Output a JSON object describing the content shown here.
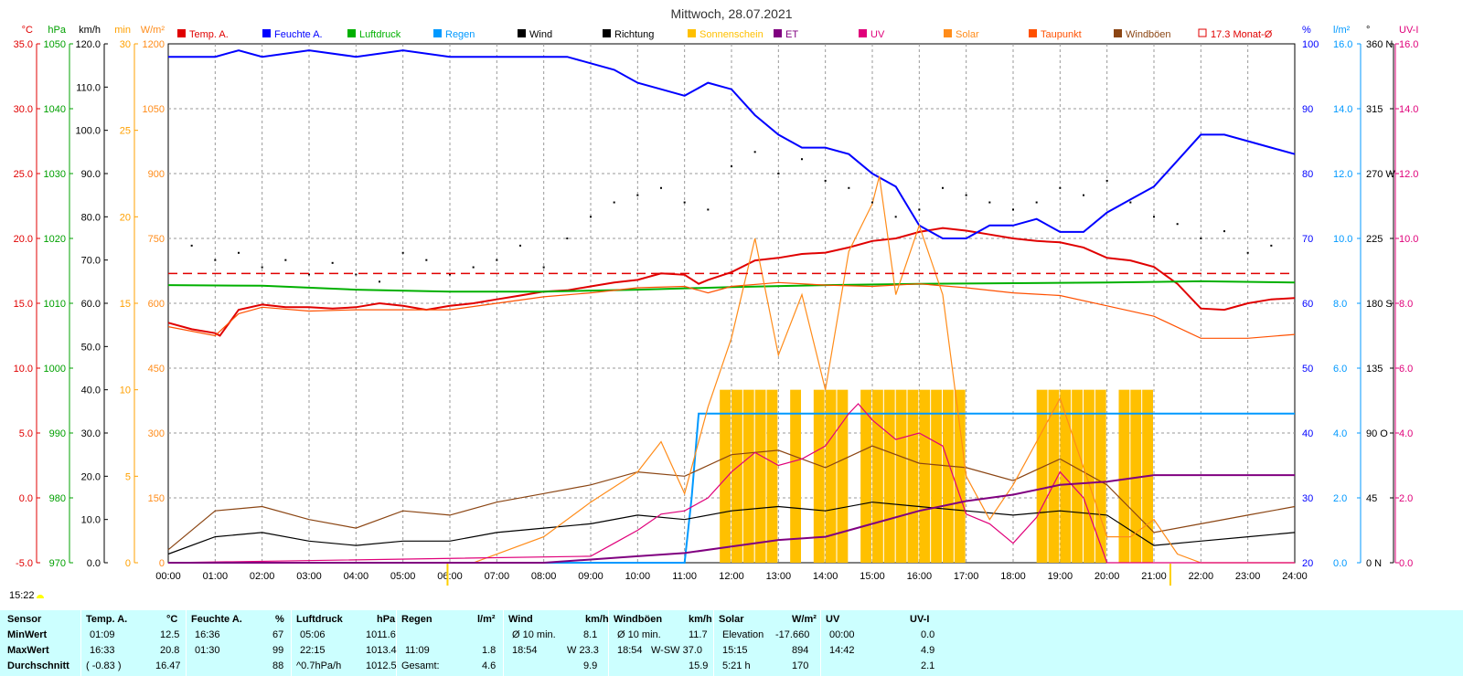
{
  "title": "Mittwoch, 28.07.2021",
  "clock": "15:22",
  "legend": [
    {
      "label": "Temp. A.",
      "color": "#e00000",
      "box": "fill"
    },
    {
      "label": "Feuchte A.",
      "color": "#0000ff",
      "box": "fill"
    },
    {
      "label": "Luftdruck",
      "color": "#00b000",
      "box": "fill"
    },
    {
      "label": "Regen",
      "color": "#0099ff",
      "box": "fill"
    },
    {
      "label": "Wind",
      "color": "#000000",
      "box": "fill"
    },
    {
      "label": "Richtung",
      "color": "#000000",
      "box": "fill"
    },
    {
      "label": "Sonnenschein",
      "color": "#ffc000",
      "box": "fill"
    },
    {
      "label": "ET",
      "color": "#800080",
      "box": "fill"
    },
    {
      "label": "UV",
      "color": "#e0007a",
      "box": "fill"
    },
    {
      "label": "Solar",
      "color": "#ff8c1a",
      "box": "fill"
    },
    {
      "label": "Taupunkt",
      "color": "#ff5000",
      "box": "fill"
    },
    {
      "label": "Windböen",
      "color": "#8b4513",
      "box": "fill"
    },
    {
      "label": "17.3 Monat-Ø",
      "color": "#e00000",
      "box": "outline"
    }
  ],
  "axes": {
    "temp": {
      "unit": "°C",
      "color": "#e00000",
      "ticks": [
        "35.0",
        "30.0",
        "25.0",
        "20.0",
        "15.0",
        "10.0",
        "5.0",
        "0.0",
        "-5.0"
      ]
    },
    "pressure": {
      "unit": "hPa",
      "color": "#00a000",
      "ticks": [
        "1050",
        "1040",
        "1030",
        "1020",
        "1010",
        "1000",
        "990",
        "980",
        "970"
      ]
    },
    "wind": {
      "unit": "km/h",
      "color": "#000000",
      "ticks": [
        "120.0",
        "110.0",
        "100.0",
        "90.0",
        "80.0",
        "70.0",
        "60.0",
        "50.0",
        "40.0",
        "30.0",
        "20.0",
        "10.0",
        "0.0"
      ]
    },
    "sunmin": {
      "unit": "min",
      "color": "#ffa000",
      "ticks": [
        "30",
        "25",
        "20",
        "15",
        "10",
        "5",
        "0"
      ]
    },
    "solar": {
      "unit": "W/m²",
      "color": "#ff8c1a",
      "ticks": [
        "1200",
        "1050",
        "900",
        "750",
        "600",
        "450",
        "300",
        "150",
        "0"
      ]
    },
    "humidity": {
      "unit": "%",
      "color": "#0000ff",
      "ticks": [
        "100",
        "90",
        "80",
        "70",
        "60",
        "50",
        "40",
        "30",
        "20"
      ]
    },
    "rain": {
      "unit": "l/m²",
      "color": "#0099ff",
      "ticks": [
        "16.0",
        "14.0",
        "12.0",
        "10.0",
        "8.0",
        "6.0",
        "4.0",
        "2.0",
        "0.0"
      ]
    },
    "direction": {
      "unit": "°",
      "color": "#000000",
      "ticks": [
        "360 N",
        "315",
        "270 W",
        "225",
        "180 S",
        "135",
        "90 O",
        "45",
        "0 N"
      ]
    },
    "uvi": {
      "unit": "UV-I",
      "color": "#e0007a",
      "ticks": [
        "16.0",
        "14.0",
        "12.0",
        "10.0",
        "8.0",
        "6.0",
        "4.0",
        "2.0",
        "0.0"
      ]
    }
  },
  "x_ticks": [
    "00:00",
    "01:00",
    "02:00",
    "03:00",
    "04:00",
    "05:00",
    "06:00",
    "07:00",
    "08:00",
    "09:00",
    "10:00",
    "11:00",
    "12:00",
    "13:00",
    "14:00",
    "15:00",
    "16:00",
    "17:00",
    "18:00",
    "19:00",
    "20:00",
    "21:00",
    "22:00",
    "23:00",
    "24:00"
  ],
  "chart_data": {
    "type": "line",
    "title": "Mittwoch, 28.07.2021",
    "x_unit": "hour of day",
    "xlim": [
      0,
      24
    ],
    "month_avg_temp": 17.3,
    "series": [
      {
        "name": "Temp. A.",
        "axis": "temp",
        "color": "#e00000",
        "x": [
          0,
          0.5,
          1.0,
          1.1,
          1.5,
          2.0,
          2.5,
          3.0,
          3.5,
          4.0,
          4.5,
          5.0,
          5.5,
          6.0,
          6.5,
          7.0,
          7.5,
          8.0,
          8.5,
          9.0,
          9.5,
          10.0,
          10.5,
          11.0,
          11.3,
          11.5,
          12.0,
          12.5,
          13.0,
          13.5,
          14.0,
          14.5,
          15.0,
          15.5,
          16.0,
          16.5,
          17.0,
          17.5,
          18.0,
          18.5,
          19.0,
          19.5,
          20.0,
          20.5,
          21.0,
          21.5,
          22.0,
          22.5,
          23.0,
          23.5,
          24.0
        ],
        "y": [
          13.5,
          13.0,
          12.7,
          12.5,
          14.5,
          14.9,
          14.7,
          14.7,
          14.6,
          14.7,
          15.0,
          14.8,
          14.5,
          14.8,
          15.0,
          15.3,
          15.6,
          15.9,
          16.0,
          16.3,
          16.6,
          16.8,
          17.3,
          17.2,
          16.5,
          16.8,
          17.4,
          18.3,
          18.5,
          18.8,
          18.9,
          19.3,
          19.8,
          20.0,
          20.5,
          20.8,
          20.6,
          20.3,
          20.0,
          19.8,
          19.7,
          19.3,
          18.5,
          18.3,
          17.8,
          16.5,
          14.6,
          14.5,
          15.0,
          15.3,
          15.4
        ]
      },
      {
        "name": "Feuchte A.",
        "axis": "humidity",
        "color": "#0000ff",
        "x": [
          0,
          1.0,
          1.5,
          2.0,
          3.0,
          4.0,
          5.0,
          6.0,
          7.0,
          8.0,
          8.5,
          9.0,
          9.5,
          10.0,
          10.5,
          11.0,
          11.5,
          12.0,
          12.5,
          13.0,
          13.5,
          14.0,
          14.5,
          15.0,
          15.5,
          16.0,
          16.5,
          17.0,
          17.5,
          18.0,
          18.5,
          19.0,
          19.5,
          20.0,
          20.5,
          21.0,
          21.5,
          22.0,
          22.5,
          23.0,
          23.5,
          24.0
        ],
        "y": [
          98,
          98,
          99,
          98,
          99,
          98,
          99,
          98,
          98,
          98,
          98,
          97,
          96,
          94,
          93,
          92,
          94,
          93,
          89,
          86,
          84,
          84,
          83,
          80,
          78,
          72,
          70,
          70,
          72,
          72,
          73,
          71,
          71,
          74,
          76,
          78,
          82,
          86,
          86,
          85,
          84,
          83
        ]
      },
      {
        "name": "Luftdruck",
        "axis": "pressure",
        "color": "#00b000",
        "x": [
          0,
          2,
          4,
          6,
          8,
          10,
          12,
          14,
          16,
          18,
          20,
          22,
          24
        ],
        "y": [
          1012.8,
          1012.7,
          1012.1,
          1011.8,
          1011.8,
          1012.1,
          1012.5,
          1012.8,
          1013.0,
          1013.1,
          1013.2,
          1013.4,
          1013.2
        ]
      },
      {
        "name": "Taupunkt",
        "axis": "temp",
        "color": "#ff5000",
        "x": [
          0,
          1.0,
          1.5,
          2.0,
          3.0,
          4.0,
          5.0,
          6.0,
          7.0,
          8.0,
          9.0,
          10.0,
          11.0,
          11.5,
          12.0,
          13.0,
          14.0,
          15.0,
          16.0,
          17.0,
          18.0,
          19.0,
          20.0,
          21.0,
          22.0,
          23.0,
          24.0
        ],
        "y": [
          13.2,
          12.5,
          14.2,
          14.7,
          14.4,
          14.5,
          14.5,
          14.5,
          15.0,
          15.5,
          15.8,
          16.2,
          16.3,
          15.8,
          16.3,
          16.6,
          16.4,
          16.3,
          16.5,
          16.2,
          15.8,
          15.6,
          14.8,
          14.0,
          12.3,
          12.3,
          12.6
        ]
      },
      {
        "name": "Regen",
        "axis": "rain",
        "color": "#0099ff",
        "x": [
          0,
          11.0,
          11.15,
          11.3,
          11.5,
          24.0
        ],
        "y": [
          0.0,
          0.0,
          2.0,
          4.6,
          4.6,
          4.6
        ]
      },
      {
        "name": "Wind",
        "axis": "wind",
        "color": "#000000",
        "x": [
          0,
          1,
          2,
          3,
          4,
          5,
          6,
          7,
          8,
          9,
          10,
          11,
          12,
          13,
          14,
          15,
          16,
          17,
          18,
          19,
          20,
          21,
          22,
          23,
          24
        ],
        "y": [
          2.0,
          6.0,
          7.0,
          5.0,
          4.0,
          5.0,
          5.0,
          7.0,
          8.0,
          9.0,
          11.0,
          10.0,
          12.0,
          13.0,
          12.0,
          14.0,
          13.0,
          12.0,
          11.0,
          12.0,
          11.0,
          4.0,
          5.0,
          6.0,
          7.0
        ]
      },
      {
        "name": "Windböen",
        "axis": "wind",
        "color": "#8b4513",
        "x": [
          0,
          1,
          2,
          3,
          4,
          5,
          6,
          7,
          8,
          9,
          10,
          11,
          12,
          13,
          14,
          15,
          16,
          17,
          18,
          19,
          20,
          21,
          22,
          23,
          24
        ],
        "y": [
          3.0,
          12.0,
          13.0,
          10.0,
          8.0,
          12.0,
          11.0,
          14.0,
          16.0,
          18.0,
          21.0,
          20.0,
          25.0,
          26.0,
          22.0,
          27.0,
          23.0,
          22.0,
          19.0,
          24.0,
          18.0,
          7.0,
          9.0,
          11.0,
          13.0
        ]
      },
      {
        "name": "Solar",
        "axis": "solar",
        "color": "#ff8c1a",
        "x": [
          0,
          6.5,
          7.0,
          8.0,
          9.0,
          10.0,
          10.5,
          11.0,
          11.5,
          12.0,
          12.5,
          13.0,
          13.5,
          14.0,
          14.5,
          15.0,
          15.15,
          15.5,
          16.0,
          16.5,
          17.0,
          17.5,
          18.0,
          18.5,
          19.0,
          19.5,
          20.0,
          20.5,
          21.0,
          21.5,
          22.0,
          24.0
        ],
        "y": [
          0,
          0,
          20,
          60,
          140,
          210,
          280,
          160,
          360,
          520,
          750,
          480,
          620,
          400,
          720,
          830,
          894,
          620,
          780,
          620,
          200,
          100,
          180,
          280,
          380,
          220,
          60,
          60,
          100,
          20,
          0,
          0
        ]
      },
      {
        "name": "UV",
        "axis": "uvi",
        "color": "#e0007a",
        "x": [
          0,
          9.0,
          9.5,
          10.0,
          10.5,
          11.0,
          11.5,
          12.0,
          12.5,
          13.0,
          13.5,
          14.0,
          14.5,
          14.7,
          15.0,
          15.5,
          16.0,
          16.5,
          17.0,
          17.5,
          18.0,
          18.5,
          19.0,
          19.5,
          20.0,
          24.0
        ],
        "y": [
          0.0,
          0.2,
          0.6,
          1.0,
          1.5,
          1.6,
          2.0,
          2.8,
          3.4,
          3.0,
          3.2,
          3.6,
          4.6,
          4.9,
          4.4,
          3.8,
          4.0,
          3.6,
          1.5,
          1.2,
          0.6,
          1.4,
          2.8,
          2.0,
          0.0,
          0.0
        ]
      },
      {
        "name": "ET",
        "axis": "uvi",
        "color": "#800080",
        "x": [
          0,
          8.0,
          9.0,
          10.0,
          11.0,
          12.0,
          13.0,
          14.0,
          15.0,
          16.0,
          17.0,
          18.0,
          19.0,
          20.0,
          21.0,
          22.0,
          23.0,
          24.0
        ],
        "y": [
          0.0,
          0.0,
          0.1,
          0.2,
          0.3,
          0.5,
          0.7,
          0.8,
          1.2,
          1.6,
          1.9,
          2.1,
          2.4,
          2.5,
          2.7,
          2.7,
          2.7,
          2.7
        ]
      },
      {
        "name": "Sonnenschein",
        "axis": "sunmin",
        "color": "#ffc000",
        "type": "bar",
        "x": [
          11.75,
          12.0,
          12.25,
          12.5,
          12.75,
          13.25,
          13.75,
          14.0,
          14.25,
          14.75,
          15.0,
          15.25,
          15.5,
          15.75,
          16.0,
          16.25,
          16.5,
          16.75,
          18.5,
          18.75,
          19.0,
          19.25,
          19.5,
          19.75,
          20.25,
          20.5,
          20.75
        ],
        "y": [
          10,
          10,
          10,
          10,
          10,
          10,
          10,
          10,
          10,
          10,
          10,
          10,
          10,
          10,
          10,
          10,
          10,
          10,
          10,
          10,
          10,
          10,
          10,
          10,
          10,
          10,
          10
        ]
      },
      {
        "name": "Richtung",
        "axis": "direction",
        "color": "#000000",
        "type": "scatter",
        "x": [
          0.5,
          1.0,
          1.5,
          2.0,
          2.5,
          3.0,
          3.5,
          4.0,
          4.5,
          5.0,
          5.5,
          6.0,
          6.5,
          7.0,
          7.5,
          8.0,
          8.5,
          9.0,
          9.5,
          10.0,
          10.5,
          11.0,
          11.5,
          12.0,
          12.5,
          13.0,
          13.5,
          14.0,
          14.5,
          15.0,
          15.5,
          16.0,
          16.5,
          17.0,
          17.5,
          18.0,
          18.5,
          19.0,
          19.5,
          20.0,
          20.5,
          21.0,
          21.5,
          22.0,
          22.5,
          23.0,
          23.5
        ],
        "y": [
          220,
          210,
          215,
          205,
          210,
          200,
          208,
          200,
          195,
          215,
          210,
          200,
          205,
          210,
          220,
          205,
          225,
          240,
          250,
          255,
          260,
          250,
          245,
          275,
          285,
          270,
          280,
          265,
          260,
          250,
          240,
          245,
          260,
          255,
          250,
          245,
          250,
          260,
          255,
          265,
          250,
          240,
          235,
          225,
          230,
          215,
          220
        ]
      }
    ]
  },
  "stats": {
    "headers": [
      "Sensor",
      "Temp. A.",
      "°C",
      "Feuchte A.",
      "%",
      "Luftdruck",
      "hPa",
      "Regen",
      "l/m²",
      "Wind",
      "km/h",
      "Windböen",
      "km/h",
      "Solar",
      "W/m²",
      "UV",
      "UV-I"
    ],
    "row_labels": [
      "MinWert",
      "MaxWert",
      "Durchschnitt"
    ],
    "temp": [
      [
        "01:09",
        "12.5"
      ],
      [
        "16:33",
        "20.8"
      ],
      [
        "( -0.83 )",
        "16.47"
      ]
    ],
    "humidity": [
      [
        "16:36",
        "67"
      ],
      [
        "01:30",
        "99"
      ],
      [
        "",
        "88"
      ]
    ],
    "pressure": [
      [
        "05:06",
        "1011.6"
      ],
      [
        "22:15",
        "1013.4"
      ],
      [
        "^0.7hPa/h",
        "1012.5"
      ]
    ],
    "rain": [
      [
        "",
        ""
      ],
      [
        "11:09",
        "1.8"
      ],
      [
        "Gesamt:",
        "4.6"
      ]
    ],
    "wind": [
      [
        "Ø 10 min.",
        "8.1"
      ],
      [
        "18:54",
        "W 23.3"
      ],
      [
        "",
        "9.9"
      ]
    ],
    "gusts": [
      [
        "Ø 10 min.",
        "11.7"
      ],
      [
        "18:54",
        "W-SW 37.0"
      ],
      [
        "",
        "15.9"
      ]
    ],
    "solar": [
      [
        "Elevation",
        "-17.660"
      ],
      [
        "15:15",
        "894"
      ],
      [
        "5:21 h",
        "170"
      ]
    ],
    "uv": [
      [
        "00:00",
        "0.0"
      ],
      [
        "14:42",
        "4.9"
      ],
      [
        "",
        "2.1"
      ]
    ]
  }
}
